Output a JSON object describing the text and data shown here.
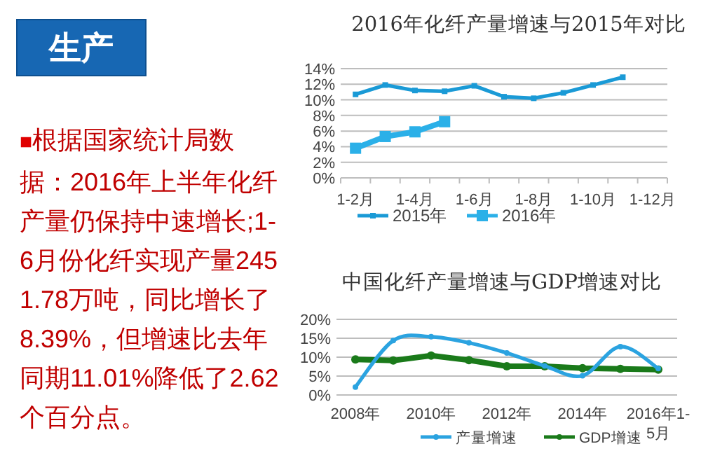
{
  "chart_data": [
    {
      "type": "other",
      "title": "生产",
      "annotations": [
        "■根据国家统计局数据：2016年上半年化纤产量仍保持中速增长;1-6月份化纤实现产量2451.78万吨，同比增长了8.39%，但增速比去年同期11.01%降低了2.62个百分点。"
      ]
    },
    {
      "type": "line",
      "title": "2016年化纤产量增速与2015年对比",
      "categories": [
        "1-2月",
        null,
        "1-4月",
        null,
        "1-6月",
        null,
        "1-8月",
        null,
        "1-10月",
        null,
        "1-12月"
      ],
      "marker": "square",
      "grid": "y",
      "legend": "bottom",
      "ylim": [
        0,
        14
      ],
      "yticks": [
        {
          "value": 0,
          "label": "0%"
        },
        {
          "value": 2,
          "label": "2%"
        },
        {
          "value": 4,
          "label": "4%"
        },
        {
          "value": 6,
          "label": "6%"
        },
        {
          "value": 8,
          "label": "8%"
        },
        {
          "value": 10,
          "label": "10%"
        },
        {
          "value": 12,
          "label": "12%"
        },
        {
          "value": 14,
          "label": "14%"
        }
      ],
      "series": [
        {
          "name": "2015年",
          "color": "#1a9ad6",
          "values": [
            10.7,
            11.9,
            11.2,
            11.1,
            11.8,
            10.4,
            10.2,
            10.9,
            11.9,
            12.9,
            null
          ]
        },
        {
          "name": "2016年",
          "color": "#2bb0e8",
          "values": [
            3.8,
            5.3,
            5.9,
            7.2,
            null,
            null,
            null,
            null,
            null,
            null,
            null
          ]
        }
      ]
    },
    {
      "type": "line",
      "title": "中国化纤产量增速与GDP增速对比",
      "categories": [
        "2008年",
        null,
        "2010年",
        null,
        "2012年",
        null,
        "2014年",
        null,
        "2016年1-5月"
      ],
      "marker": "circle",
      "grid": "y",
      "legend": "bottom",
      "ylim": [
        0,
        20
      ],
      "yticks": [
        {
          "value": 0,
          "label": "0%"
        },
        {
          "value": 5,
          "label": "5%"
        },
        {
          "value": 10,
          "label": "10%"
        },
        {
          "value": 15,
          "label": "15%"
        },
        {
          "value": 20,
          "label": "20%"
        }
      ],
      "series": [
        {
          "name": "产量增速",
          "color": "#2ba3e0",
          "values": [
            2.1,
            14.4,
            15.4,
            13.8,
            11.1,
            7.7,
            5.1,
            12.8,
            7.0
          ]
        },
        {
          "name": "GDP增速",
          "color": "#1a7a1a",
          "values": [
            9.4,
            9.1,
            10.4,
            9.2,
            7.6,
            7.6,
            7.1,
            6.9,
            6.7
          ]
        }
      ]
    }
  ]
}
